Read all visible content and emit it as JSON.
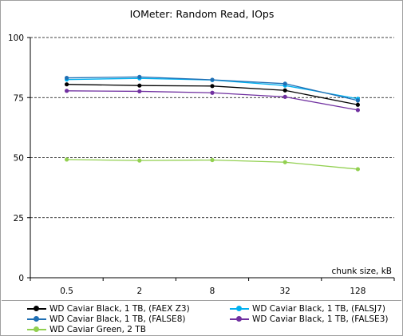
{
  "chart_data": {
    "type": "line",
    "title": "IOMeter: Random Read, IOps",
    "xlabel": "chunk size, kB",
    "ylabel": "",
    "categories": [
      "0.5",
      "2",
      "8",
      "32",
      "128"
    ],
    "ylim": [
      0,
      100
    ],
    "yticks": [
      0,
      25,
      50,
      75,
      100
    ],
    "grid": "horizontal dashed",
    "legend_position": "bottom",
    "series": [
      {
        "name": "WD Caviar Black, 1 TB, (FAEX Z3)",
        "color": "#000000",
        "values": [
          80.5,
          80,
          79.8,
          78,
          72
        ]
      },
      {
        "name": "WD Caviar Black, 1 TB, (FALSJ7)",
        "color": "#00b0f0",
        "values": [
          82.5,
          83,
          82.3,
          80,
          74.5
        ]
      },
      {
        "name": "WD Caviar Black, 1 TB, (FALSE8)",
        "color": "#1f6fb4",
        "values": [
          83.2,
          83.6,
          82.4,
          80.8,
          73.8
        ]
      },
      {
        "name": "WD Caviar Black, 1 TB, (FALSE3)",
        "color": "#7030a0",
        "values": [
          77.8,
          77.6,
          77,
          75.3,
          69.8
        ]
      },
      {
        "name": "WD Caviar Green, 2 TB",
        "color": "#92d050",
        "values": [
          49.2,
          48.8,
          49,
          48.1,
          45.2
        ]
      }
    ]
  }
}
